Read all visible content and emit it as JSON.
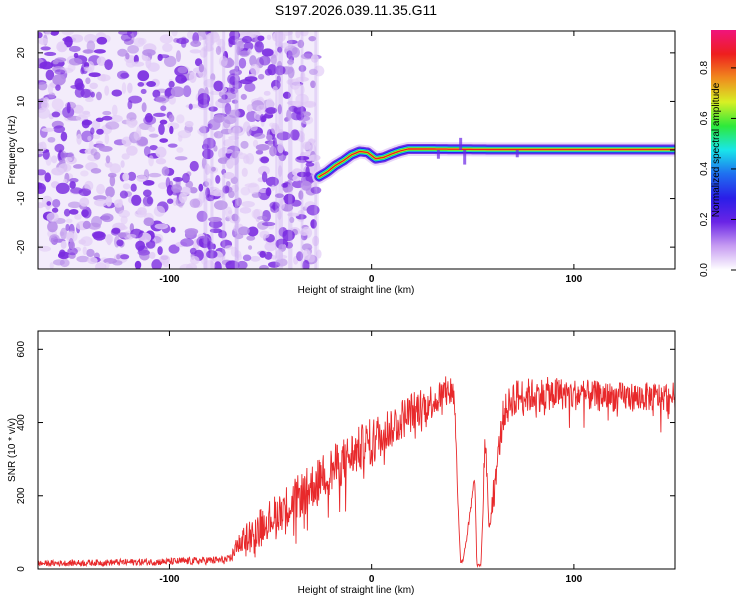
{
  "page_title": "S197.2026.039.11.35.G11",
  "colors": {
    "snr_line": "#e8292b",
    "noise_dark": "#7a2be0",
    "noise_light": "#e2cdf6",
    "frame": "#000000"
  },
  "colorbar": {
    "label": "Normalized spectral amplitude",
    "range": [
      0,
      0.95
    ],
    "ticks": [
      {
        "value": 0.0,
        "label": "0.0"
      },
      {
        "value": 0.2,
        "label": "0.2"
      },
      {
        "value": 0.4,
        "label": "0.4"
      },
      {
        "value": 0.6,
        "label": "0.6"
      },
      {
        "value": 0.8,
        "label": "0.8"
      }
    ],
    "stops": [
      "#ffffff",
      "#c79cf2",
      "#6a24e6",
      "#2a1ee8",
      "#1f6ff0",
      "#19e6ea",
      "#2ee93a",
      "#d8f024",
      "#f08a1e",
      "#ee1e1e",
      "#f0147c"
    ]
  },
  "chart_data": [
    {
      "type": "heatmap",
      "title": "S197.2026.039.11.35.G11",
      "xlabel": "Height of straight line (km)",
      "ylabel": "Frequency (Hz)",
      "xlim": [
        -165,
        150
      ],
      "ylim": [
        -24.5,
        24.5
      ],
      "xticks": [
        {
          "value": -100,
          "label": "-100"
        },
        {
          "value": 0,
          "label": "0"
        },
        {
          "value": 100,
          "label": "100"
        }
      ],
      "yticks": [
        {
          "value": -20,
          "label": "-20"
        },
        {
          "value": -10,
          "label": "-10"
        },
        {
          "value": 0,
          "label": "0"
        },
        {
          "value": 10,
          "label": "10"
        },
        {
          "value": 20,
          "label": "20"
        }
      ],
      "noise_region_x": [
        -165,
        -26
      ],
      "track": {
        "x": [
          -26,
          -22,
          -18,
          -14,
          -10,
          -6,
          -2,
          2,
          6,
          10,
          14,
          18,
          30,
          60,
          90,
          120,
          150
        ],
        "freq": [
          -5.5,
          -4.5,
          -3.2,
          -2.2,
          -1.0,
          -0.3,
          -0.5,
          -1.8,
          -1.5,
          -0.8,
          -0.2,
          0.2,
          0.2,
          0.1,
          0.1,
          0.1,
          0.1
        ],
        "peak_amplitude": 0.95
      }
    },
    {
      "type": "line",
      "xlabel": "Height of straight line (km)",
      "ylabel": "SNR (10 * v/v)",
      "xlim": [
        -165,
        150
      ],
      "ylim": [
        0,
        650
      ],
      "xticks": [
        {
          "value": -100,
          "label": "-100"
        },
        {
          "value": 0,
          "label": "0"
        },
        {
          "value": 100,
          "label": "100"
        }
      ],
      "yticks": [
        {
          "value": 0,
          "label": "0"
        },
        {
          "value": 200,
          "label": "200"
        },
        {
          "value": 400,
          "label": "400"
        },
        {
          "value": 600,
          "label": "600"
        }
      ],
      "series": [
        {
          "name": "SNR",
          "envelope_x": [
            -165,
            -100,
            -70,
            -67,
            -60,
            -40,
            -20,
            0,
            20,
            40,
            41,
            43,
            44,
            45,
            48,
            51,
            52,
            53,
            54,
            55,
            56,
            58,
            60,
            65,
            70,
            90,
            120,
            150
          ],
          "envelope_y": [
            15,
            20,
            25,
            60,
            100,
            180,
            270,
            350,
            430,
            490,
            460,
            140,
            20,
            20,
            120,
            250,
            10,
            10,
            10,
            150,
            380,
            120,
            200,
            420,
            470,
            480,
            470,
            470
          ],
          "noise_amplitude": [
            8,
            10,
            12,
            25,
            45,
            60,
            65,
            65,
            55,
            45,
            30,
            10,
            5,
            5,
            15,
            20,
            3,
            3,
            3,
            20,
            35,
            25,
            40,
            45,
            50,
            45,
            40,
            40
          ]
        }
      ]
    }
  ]
}
